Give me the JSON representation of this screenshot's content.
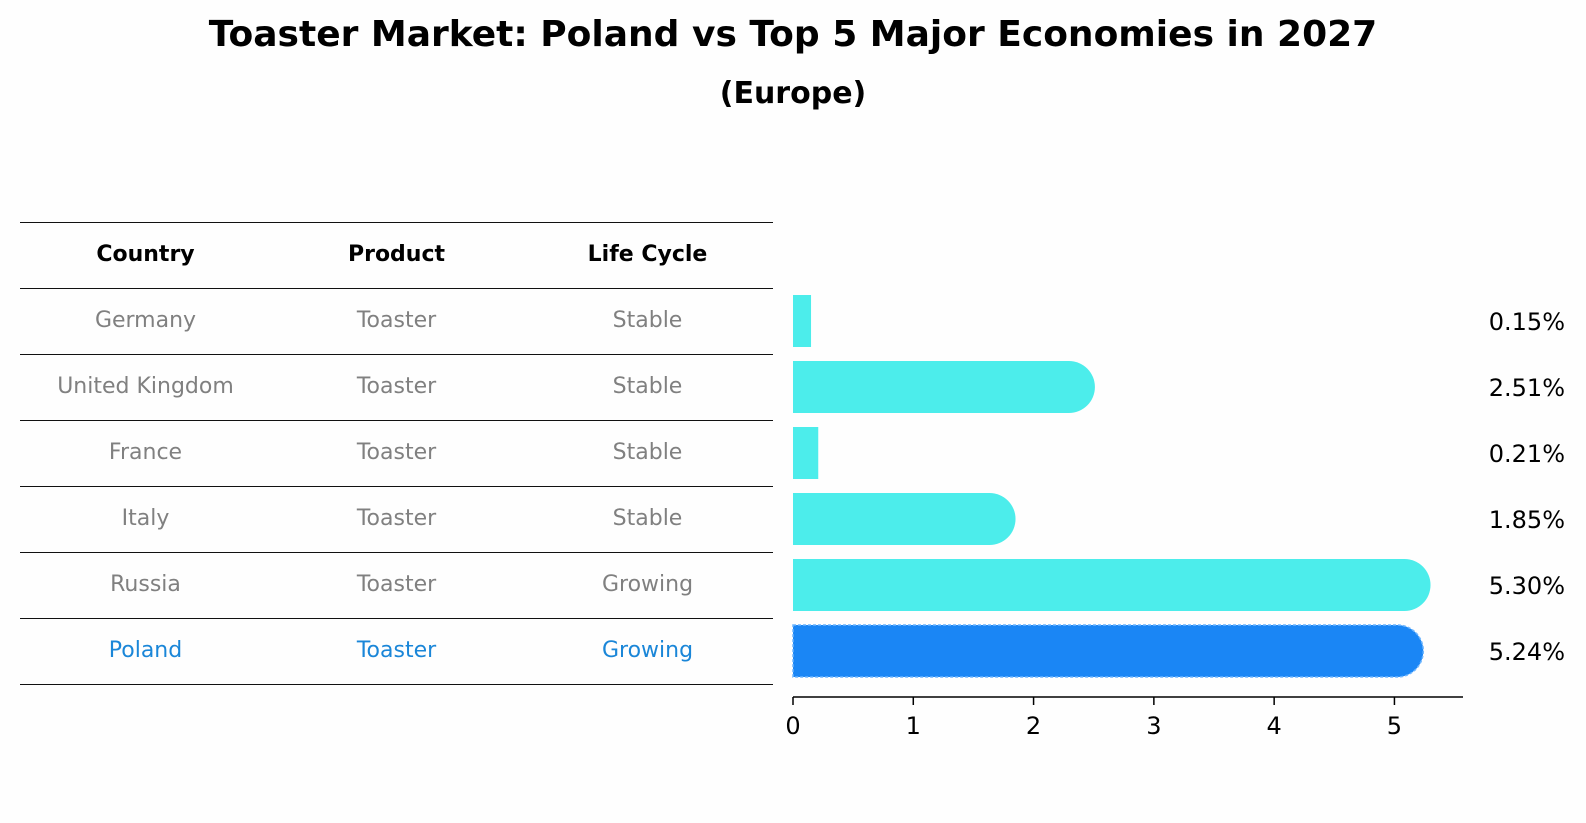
{
  "title": "Toaster Market: Poland vs Top 5 Major Economies in 2027",
  "subtitle": "(Europe)",
  "table": {
    "headers": [
      "Country",
      "Product",
      "Life Cycle"
    ],
    "rows": [
      [
        "Germany",
        "Toaster",
        "Stable"
      ],
      [
        "United Kingdom",
        "Toaster",
        "Stable"
      ],
      [
        "France",
        "Toaster",
        "Stable"
      ],
      [
        "Italy",
        "Toaster",
        "Stable"
      ],
      [
        "Russia",
        "Toaster",
        "Growing"
      ],
      [
        "Poland",
        "Toaster",
        "Growing"
      ]
    ]
  },
  "colors": {
    "bar": "#4cedeb",
    "highlight": "#1a86f5",
    "highlight_text": "#1a86d8",
    "muted_text": "#808080"
  },
  "chart_data": {
    "type": "bar",
    "orientation": "horizontal",
    "categories": [
      "Germany",
      "United Kingdom",
      "France",
      "Italy",
      "Russia",
      "Poland"
    ],
    "values": [
      0.15,
      2.51,
      0.21,
      1.85,
      5.3,
      5.24
    ],
    "value_labels": [
      "0.15%",
      "2.51%",
      "0.21%",
      "1.85%",
      "5.30%",
      "5.24%"
    ],
    "highlight_index": 5,
    "xlim": [
      0,
      5.57
    ],
    "xticks": [
      0,
      1,
      2,
      3,
      4,
      5
    ],
    "xtick_labels": [
      "0",
      "1",
      "2",
      "3",
      "4",
      "5"
    ],
    "xlabel": "",
    "ylabel": "",
    "grid": false
  }
}
